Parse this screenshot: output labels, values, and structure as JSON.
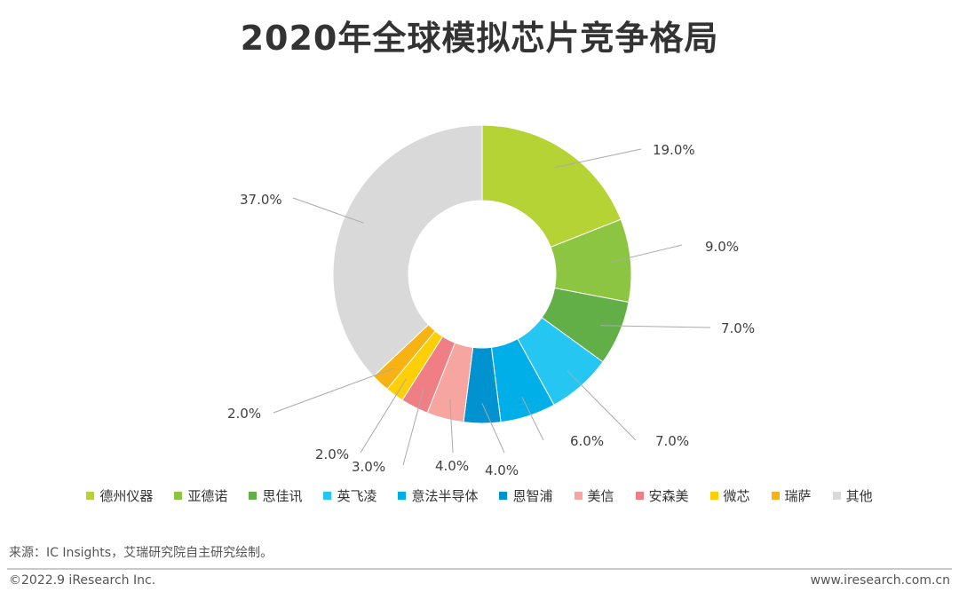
{
  "title": "2020年全球模拟芯片竞争格局",
  "chart_data": {
    "type": "pie",
    "title": "2020年全球模拟芯片竞争格局",
    "categories": [
      "德州仪器",
      "亚德诺",
      "思佳讯",
      "英飞凌",
      "意法半导体",
      "恩智浦",
      "美信",
      "安森美",
      "微芯",
      "瑞萨",
      "其他"
    ],
    "values": [
      19.0,
      9.0,
      7.0,
      7.0,
      6.0,
      4.0,
      4.0,
      3.0,
      2.0,
      2.0,
      37.0
    ],
    "labels": [
      "19.0%",
      "9.0%",
      "7.0%",
      "7.0%",
      "6.0%",
      "4.0%",
      "4.0%",
      "3.0%",
      "2.0%",
      "2.0%",
      "37.0%"
    ],
    "colors": [
      "#b5d334",
      "#8cc541",
      "#62ae47",
      "#25c7f2",
      "#00aee8",
      "#0093cf",
      "#f6a5a1",
      "#f07f85",
      "#ffcf06",
      "#f8b214",
      "#d9d9d9"
    ],
    "legend_position": "bottom"
  },
  "source": "来源：IC Insights，艾瑞研究院自主研究绘制。",
  "copyright": "©2022.9 iResearch Inc.",
  "website": "www.iresearch.com.cn"
}
